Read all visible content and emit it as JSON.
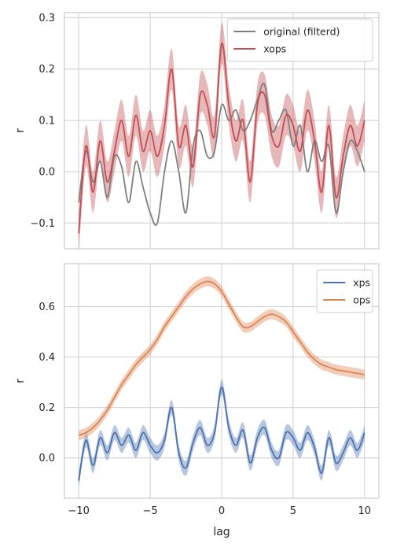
{
  "chart_data": [
    {
      "type": "line",
      "xlabel": "",
      "ylabel": "r",
      "xlim": [
        -11,
        11
      ],
      "ylim": [
        -0.15,
        0.31
      ],
      "xticks": [
        -10,
        -5,
        0,
        5,
        10
      ],
      "yticks": [
        -0.1,
        0.0,
        0.1,
        0.2,
        0.3
      ],
      "ytick_labels": [
        "−0.1",
        "0.0",
        "0.1",
        "0.2",
        "0.3"
      ],
      "grid": true,
      "legend_position": "top-right",
      "series": [
        {
          "name": "original (filterd)",
          "color": "#7f7f7f",
          "band": false,
          "x": [
            -10,
            -9.5,
            -9,
            -8.5,
            -8,
            -7.5,
            -7,
            -6.5,
            -6,
            -5.5,
            -5,
            -4.5,
            -4,
            -3.5,
            -3,
            -2.5,
            -2,
            -1.5,
            -1,
            -0.5,
            0,
            0.5,
            1,
            1.5,
            2,
            2.5,
            3,
            3.5,
            4,
            4.5,
            5,
            5.5,
            6,
            6.5,
            7,
            7.5,
            8,
            8.5,
            9,
            9.5,
            10
          ],
          "y": [
            -0.06,
            0.04,
            -0.02,
            0.02,
            -0.05,
            0.03,
            0.01,
            -0.06,
            0.02,
            -0.03,
            -0.08,
            -0.1,
            0.0,
            0.06,
            0.0,
            -0.08,
            0.05,
            0.08,
            0.03,
            0.04,
            0.13,
            0.1,
            0.12,
            0.08,
            0.1,
            0.14,
            0.17,
            0.08,
            0.1,
            0.12,
            0.05,
            0.09,
            0.0,
            0.06,
            0.02,
            0.05,
            -0.08,
            0.0,
            0.06,
            0.04,
            0.0
          ]
        },
        {
          "name": "xops",
          "color": "#c44e52",
          "band": true,
          "x": [
            -10,
            -9.5,
            -9,
            -8.5,
            -8,
            -7.5,
            -7,
            -6.5,
            -6,
            -5.5,
            -5,
            -4.5,
            -4,
            -3.5,
            -3,
            -2.5,
            -2,
            -1.5,
            -1,
            -0.5,
            0,
            0.5,
            1,
            1.5,
            2,
            2.5,
            3,
            3.5,
            4,
            4.5,
            5,
            5.5,
            6,
            6.5,
            7,
            7.5,
            8,
            8.5,
            9,
            9.5,
            10
          ],
          "y": [
            -0.12,
            0.05,
            -0.04,
            0.06,
            -0.02,
            0.04,
            0.1,
            0.03,
            0.11,
            0.04,
            0.08,
            0.03,
            0.09,
            0.2,
            0.05,
            0.09,
            0.01,
            0.15,
            0.13,
            0.07,
            0.25,
            0.13,
            0.06,
            0.1,
            -0.02,
            0.13,
            0.15,
            0.07,
            0.05,
            0.11,
            0.09,
            0.04,
            0.12,
            0.06,
            -0.04,
            0.09,
            -0.05,
            0.03,
            0.09,
            0.05,
            0.1
          ],
          "band_half_width": 0.04
        }
      ]
    },
    {
      "type": "line",
      "xlabel": "lag",
      "ylabel": "r",
      "xlim": [
        -11,
        11
      ],
      "ylim": [
        -0.16,
        0.77
      ],
      "xticks": [
        -10,
        -5,
        0,
        5,
        10
      ],
      "xtick_labels": [
        "−10",
        "−5",
        "0",
        "5",
        "10"
      ],
      "yticks": [
        0.0,
        0.2,
        0.4,
        0.6
      ],
      "ytick_labels": [
        "0.0",
        "0.2",
        "0.4",
        "0.6"
      ],
      "grid": true,
      "legend_position": "top-right",
      "series": [
        {
          "name": "xps",
          "color": "#4c72b0",
          "band": true,
          "x": [
            -10,
            -9.5,
            -9,
            -8.5,
            -8,
            -7.5,
            -7,
            -6.5,
            -6,
            -5.5,
            -5,
            -4.5,
            -4,
            -3.5,
            -3,
            -2.5,
            -2,
            -1.5,
            -1,
            -0.5,
            0,
            0.5,
            1,
            1.5,
            2,
            2.5,
            3,
            3.5,
            4,
            4.5,
            5,
            5.5,
            6,
            6.5,
            7,
            7.5,
            8,
            8.5,
            9,
            9.5,
            10
          ],
          "y": [
            -0.09,
            0.07,
            -0.03,
            0.08,
            0.02,
            0.1,
            0.05,
            0.09,
            0.03,
            0.1,
            0.05,
            0.02,
            0.07,
            0.2,
            0.02,
            -0.04,
            0.06,
            0.12,
            0.05,
            0.1,
            0.28,
            0.12,
            0.05,
            0.11,
            -0.02,
            0.08,
            0.12,
            0.03,
            0.0,
            0.1,
            0.08,
            0.03,
            0.1,
            0.04,
            -0.06,
            0.08,
            -0.02,
            0.02,
            0.08,
            0.03,
            0.1
          ],
          "band_half_width": 0.03
        },
        {
          "name": "ops",
          "color": "#dd8452",
          "band": true,
          "x": [
            -10,
            -9.5,
            -9,
            -8.5,
            -8,
            -7.5,
            -7,
            -6.5,
            -6,
            -5.5,
            -5,
            -4.5,
            -4,
            -3.5,
            -3,
            -2.5,
            -2,
            -1.5,
            -1,
            -0.5,
            0,
            0.5,
            1,
            1.5,
            2,
            2.5,
            3,
            3.5,
            4,
            4.5,
            5,
            5.5,
            6,
            6.5,
            7,
            7.5,
            8,
            8.5,
            9,
            9.5,
            10
          ],
          "y": [
            0.09,
            0.1,
            0.12,
            0.15,
            0.19,
            0.24,
            0.29,
            0.33,
            0.37,
            0.4,
            0.43,
            0.47,
            0.52,
            0.56,
            0.6,
            0.64,
            0.67,
            0.69,
            0.7,
            0.69,
            0.66,
            0.61,
            0.56,
            0.52,
            0.52,
            0.54,
            0.56,
            0.57,
            0.56,
            0.54,
            0.5,
            0.46,
            0.42,
            0.39,
            0.37,
            0.36,
            0.35,
            0.345,
            0.34,
            0.335,
            0.33
          ],
          "band_half_width": 0.02
        }
      ]
    }
  ]
}
